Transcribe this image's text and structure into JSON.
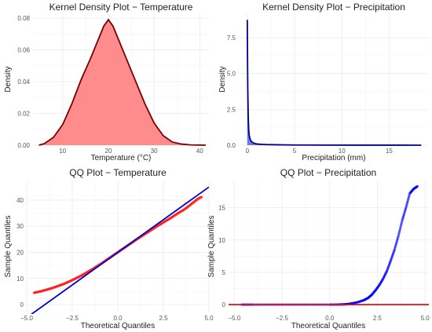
{
  "chart_data": [
    {
      "type": "area",
      "title": "Kernel Density Plot - Temperature",
      "xlabel": "Temperature (°C)",
      "ylabel": "Density",
      "xlim": [
        3.5,
        42
      ],
      "ylim": [
        0,
        0.083
      ],
      "xticks": [
        10,
        20,
        30,
        40
      ],
      "yticks": [
        0.0,
        0.02,
        0.04,
        0.06,
        0.08
      ],
      "ytick_decimals": 2,
      "fill": "#ff7f7f",
      "stroke": "#7a0000",
      "x": [
        4.8,
        6,
        8,
        10,
        12,
        14,
        16,
        17,
        18,
        19,
        20,
        21,
        22,
        23,
        24,
        26,
        28,
        30,
        32,
        34,
        36,
        38,
        40,
        41.3
      ],
      "y": [
        0,
        0.001,
        0.005,
        0.013,
        0.026,
        0.041,
        0.054,
        0.061,
        0.068,
        0.075,
        0.079,
        0.075,
        0.068,
        0.061,
        0.054,
        0.04,
        0.026,
        0.014,
        0.006,
        0.002,
        0.0007,
        0.0002,
        0.0001,
        0
      ]
    },
    {
      "type": "area",
      "title": "Kernel Density Plot - Precipitation",
      "xlabel": "Precipitation (mm)",
      "ylabel": "Density",
      "xlim": [
        -0.9,
        19.2
      ],
      "ylim": [
        0,
        9.2
      ],
      "xticks": [
        0,
        5,
        10,
        15
      ],
      "yticks": [
        0.0,
        2.5,
        5.0,
        7.5
      ],
      "ytick_decimals": 1,
      "fill": "#5a6ee8",
      "stroke": "#00008b",
      "x": [
        0,
        0.02,
        0.05,
        0.1,
        0.15,
        0.2,
        0.3,
        0.4,
        0.5,
        0.7,
        1,
        1.5,
        2,
        3,
        5,
        8,
        12,
        16,
        18.4
      ],
      "y": [
        8.75,
        6.5,
        4.0,
        2.0,
        1.1,
        0.7,
        0.42,
        0.3,
        0.22,
        0.14,
        0.09,
        0.06,
        0.045,
        0.03,
        0.015,
        0.008,
        0.004,
        0.002,
        0
      ]
    },
    {
      "type": "scatter",
      "title": "QQ Plot - Temperature",
      "xlabel": "Theoretical Quantiles",
      "ylabel": "Sample Quantiles",
      "xlim": [
        -5,
        5
      ],
      "ylim": [
        -3,
        47.5
      ],
      "xticks": [
        -5.0,
        -2.5,
        0.0,
        2.5,
        5.0
      ],
      "yticks": [
        0,
        10,
        20,
        30,
        40
      ],
      "ytick_decimals": 0,
      "sample_color": "#ff2020",
      "line_color": "#0000cd",
      "reference_line": {
        "slope": 5.0,
        "intercept": 20.0
      },
      "points_x": [
        -4.6,
        -4.4,
        -4.2,
        -4.0,
        -3.8,
        -3.6,
        -3.4,
        -3.2,
        -3.0,
        -2.8,
        -2.6,
        -2.4,
        -2.2,
        -2.0,
        -1.8,
        -1.6,
        -1.4,
        -1.2,
        -1.0,
        -0.8,
        -0.6,
        -0.4,
        -0.2,
        0,
        0.2,
        0.4,
        0.6,
        0.8,
        1.0,
        1.2,
        1.4,
        1.6,
        1.8,
        2.0,
        2.2,
        2.4,
        2.6,
        2.8,
        3.0,
        3.2,
        3.4,
        3.6,
        3.8,
        4.0,
        4.2,
        4.4,
        4.6
      ],
      "points_y": [
        4.5,
        4.8,
        5.1,
        5.5,
        5.9,
        6.3,
        6.8,
        7.3,
        7.8,
        8.4,
        9.0,
        9.7,
        10.4,
        11.1,
        11.9,
        12.7,
        13.5,
        14.4,
        15.3,
        16.2,
        17.2,
        18.1,
        19.1,
        20.0,
        21.0,
        21.9,
        22.9,
        23.8,
        24.8,
        25.7,
        26.6,
        27.5,
        28.4,
        29.3,
        30.2,
        31.0,
        31.9,
        32.7,
        33.6,
        34.5,
        35.4,
        36.2,
        37.2,
        38.3,
        39.4,
        40.5,
        41.2
      ]
    },
    {
      "type": "scatter",
      "title": "QQ Plot - Precipitation",
      "xlabel": "Theoretical Quantiles",
      "ylabel": "Sample Quantiles",
      "xlim": [
        -5.3,
        5.2
      ],
      "ylim": [
        -1.2,
        19.2
      ],
      "xticks": [
        -5.0,
        -2.5,
        0.0,
        2.5,
        5.0
      ],
      "yticks": [
        0,
        5,
        10,
        15
      ],
      "ytick_decimals": 0,
      "sample_color": "#0000ff",
      "line_color": "#e01010",
      "reference_line": {
        "slope": 0.0,
        "intercept": 0.0
      },
      "points_x": [
        -4.6,
        -4.0,
        -3.0,
        -2.0,
        -1.0,
        0,
        0.5,
        0.8,
        1.0,
        1.2,
        1.5,
        1.8,
        2.0,
        2.2,
        2.4,
        2.6,
        2.8,
        3.0,
        3.2,
        3.4,
        3.6,
        3.8,
        4.0,
        4.2,
        4.4,
        4.6
      ],
      "points_y": [
        0,
        0,
        0,
        0,
        0,
        0,
        0.02,
        0.05,
        0.1,
        0.2,
        0.4,
        0.7,
        1.0,
        1.5,
        2.2,
        3.0,
        4.0,
        5.2,
        6.8,
        8.5,
        10.6,
        13.0,
        15.0,
        17.2,
        17.9,
        18.3
      ]
    }
  ]
}
